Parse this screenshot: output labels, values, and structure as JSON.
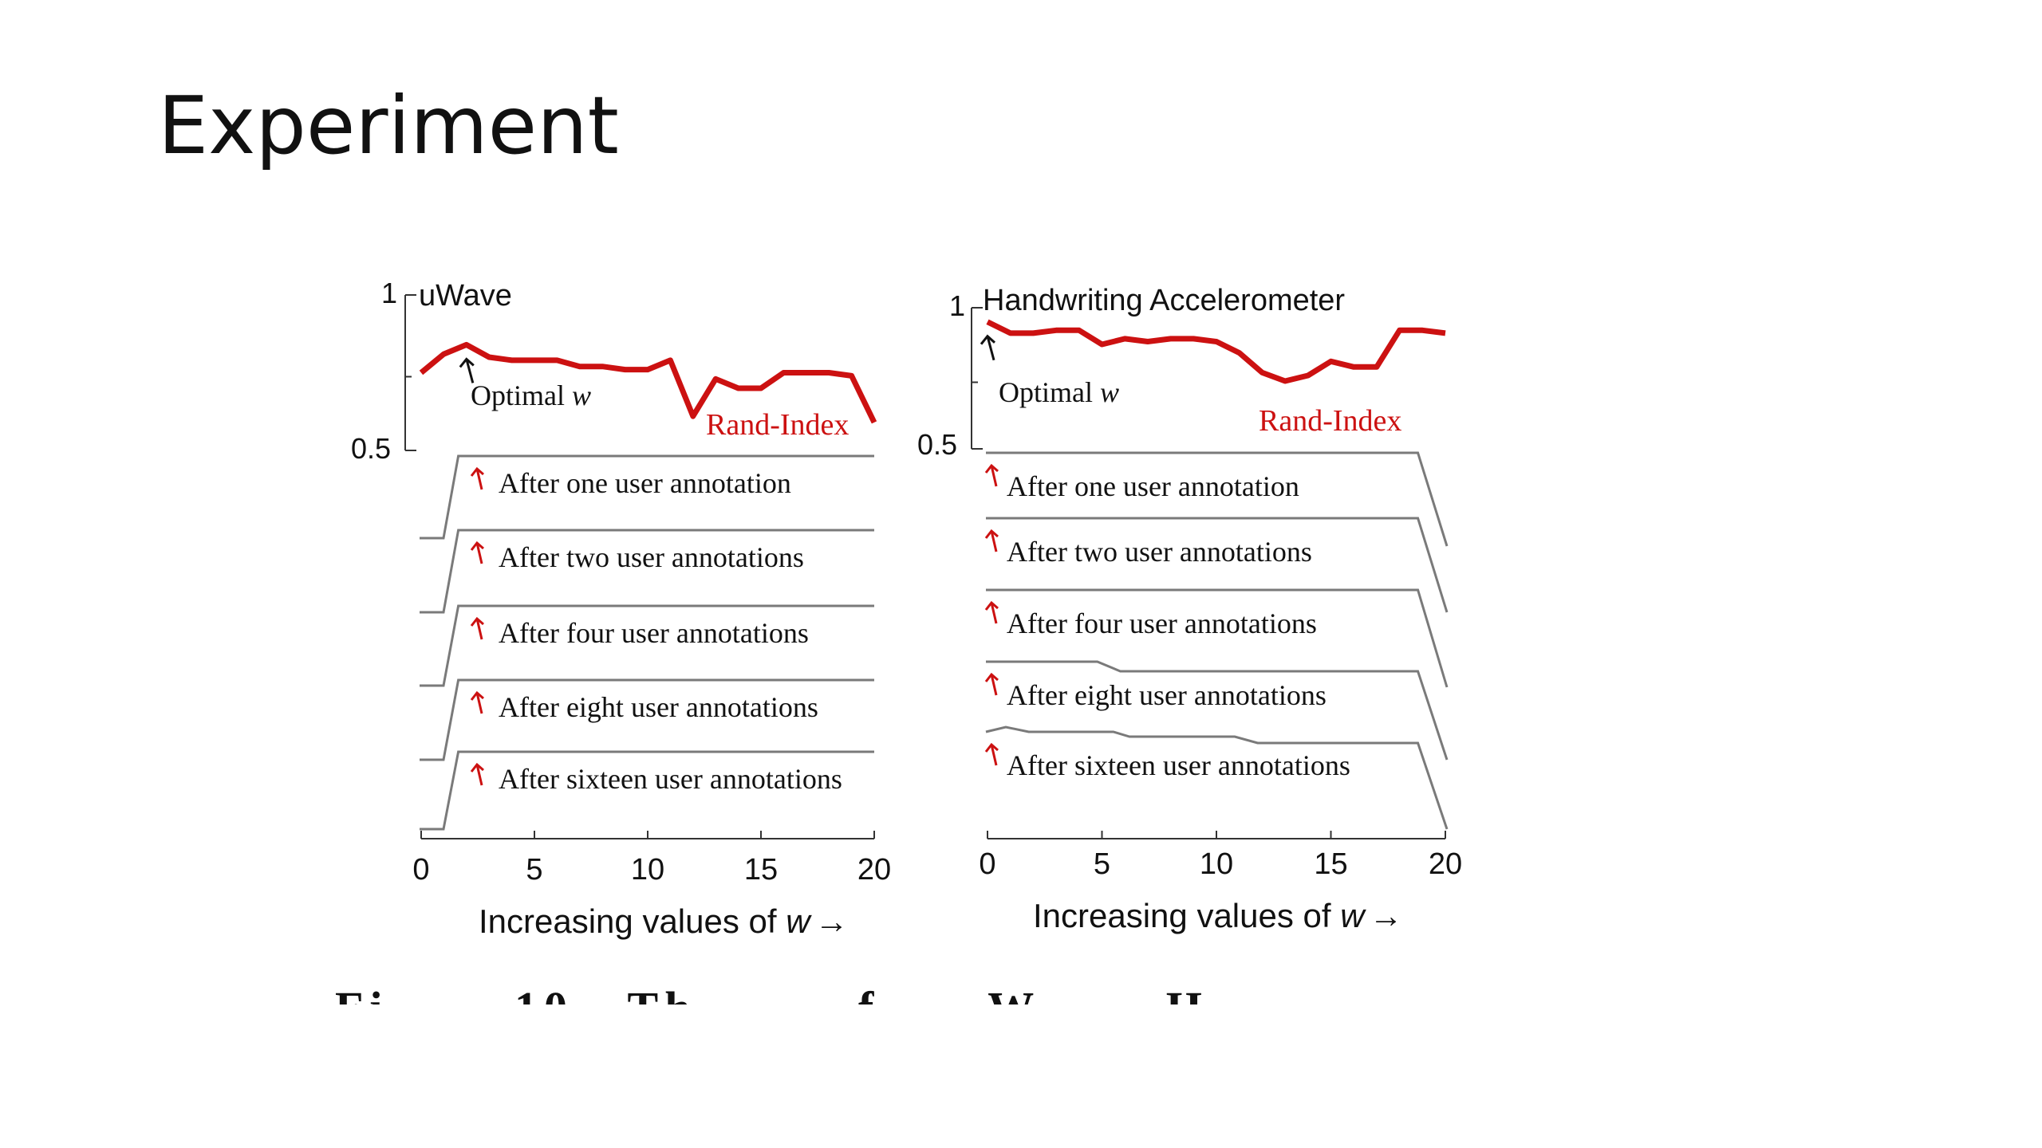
{
  "slide": {
    "title": "Experiment"
  },
  "colors": {
    "rand_index": "#cc1111",
    "optimal_arrow": "#111111",
    "annotation_arrow": "#cc1111",
    "timeline": "#7a7a7a",
    "axis": "#333333",
    "text": "#111111"
  },
  "chart_data": [
    {
      "type": "line",
      "title": "uWave",
      "xlabel": "Increasing values of w →",
      "xlabel_main": "Increasing values of ",
      "xlabel_var": "w",
      "xlabel_arrow": "→",
      "xlim": [
        0,
        20
      ],
      "xticks": [
        "0",
        "5",
        "10",
        "15",
        "20"
      ],
      "ylim": [
        0.5,
        1
      ],
      "yticks": [
        "1",
        "0.5"
      ],
      "series": [
        {
          "name": "Rand-Index",
          "x": [
            0,
            1,
            2,
            3,
            4,
            5,
            6,
            7,
            8,
            9,
            10,
            11,
            12,
            13,
            14,
            15,
            16,
            17,
            18,
            19,
            20
          ],
          "values": [
            0.75,
            0.81,
            0.84,
            0.8,
            0.79,
            0.79,
            0.79,
            0.77,
            0.77,
            0.76,
            0.76,
            0.79,
            0.61,
            0.73,
            0.7,
            0.7,
            0.75,
            0.75,
            0.75,
            0.74,
            0.59
          ]
        }
      ],
      "optimal": {
        "label": "Optimal",
        "var": "w",
        "x": 2
      },
      "series_label": "Rand-Index",
      "annotation_rows": [
        {
          "label": "After one user annotation",
          "rise_x": 1.5
        },
        {
          "label": "After two user annotations",
          "rise_x": 1.5
        },
        {
          "label": "After four user annotations",
          "rise_x": 1.5
        },
        {
          "label": "After eight user annotations",
          "rise_x": 1.5
        },
        {
          "label": "After sixteen user annotations",
          "rise_x": 1.5
        }
      ]
    },
    {
      "type": "line",
      "title": "Handwriting Accelerometer",
      "xlabel": "Increasing values of w →",
      "xlabel_main": "Increasing values of ",
      "xlabel_var": "w",
      "xlabel_arrow": "→",
      "xlim": [
        0,
        20
      ],
      "xticks": [
        "0",
        "5",
        "10",
        "15",
        "20"
      ],
      "ylim": [
        0.5,
        1
      ],
      "yticks": [
        "1",
        "0.5"
      ],
      "series": [
        {
          "name": "Rand-Index",
          "x": [
            0,
            1,
            2,
            3,
            4,
            5,
            6,
            7,
            8,
            9,
            10,
            11,
            12,
            13,
            14,
            15,
            16,
            17,
            18,
            19,
            20
          ],
          "values": [
            0.95,
            0.91,
            0.91,
            0.92,
            0.92,
            0.87,
            0.89,
            0.88,
            0.89,
            0.89,
            0.88,
            0.84,
            0.77,
            0.74,
            0.76,
            0.81,
            0.79,
            0.79,
            0.92,
            0.92,
            0.91
          ]
        }
      ],
      "optimal": {
        "label": "Optimal",
        "var": "w",
        "x": 0
      },
      "series_label": "Rand-Index",
      "annotation_rows": [
        {
          "label": "After one user annotation",
          "rise_x": 0
        },
        {
          "label": "After two user annotations",
          "rise_x": 0
        },
        {
          "label": "After four user annotations",
          "rise_x": 0
        },
        {
          "label": "After eight user annotations",
          "rise_x": 0
        },
        {
          "label": "After sixteen user annotations",
          "rise_x": 0
        }
      ]
    }
  ]
}
